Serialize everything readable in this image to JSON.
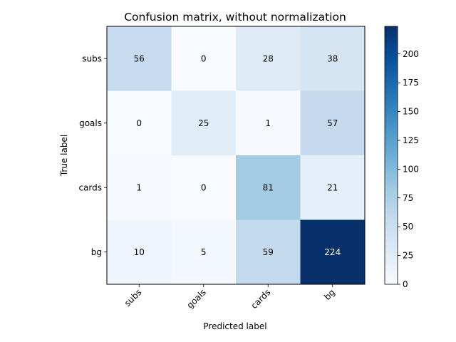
{
  "chart_data": {
    "type": "heatmap",
    "title": "Confusion matrix, without normalization",
    "xlabel": "Predicted label",
    "ylabel": "True label",
    "x_categories": [
      "subs",
      "goals",
      "cards",
      "bg"
    ],
    "y_categories": [
      "subs",
      "goals",
      "cards",
      "bg"
    ],
    "values": [
      [
        56,
        0,
        28,
        38
      ],
      [
        0,
        25,
        1,
        57
      ],
      [
        1,
        0,
        81,
        21
      ],
      [
        10,
        5,
        59,
        224
      ]
    ],
    "colormap": "Blues",
    "color_range": [
      0,
      224
    ],
    "colorbar_ticks": [
      0,
      25,
      50,
      75,
      100,
      125,
      150,
      175,
      200
    ],
    "colorbar_tick_labels": [
      "0",
      "25",
      "50",
      "75",
      "100",
      "125",
      "150",
      "175",
      "200"
    ],
    "low_color": "#f7fbff",
    "high_color": "#08306b",
    "text_dark_color": "#000000",
    "text_light_color": "#ffffff"
  }
}
